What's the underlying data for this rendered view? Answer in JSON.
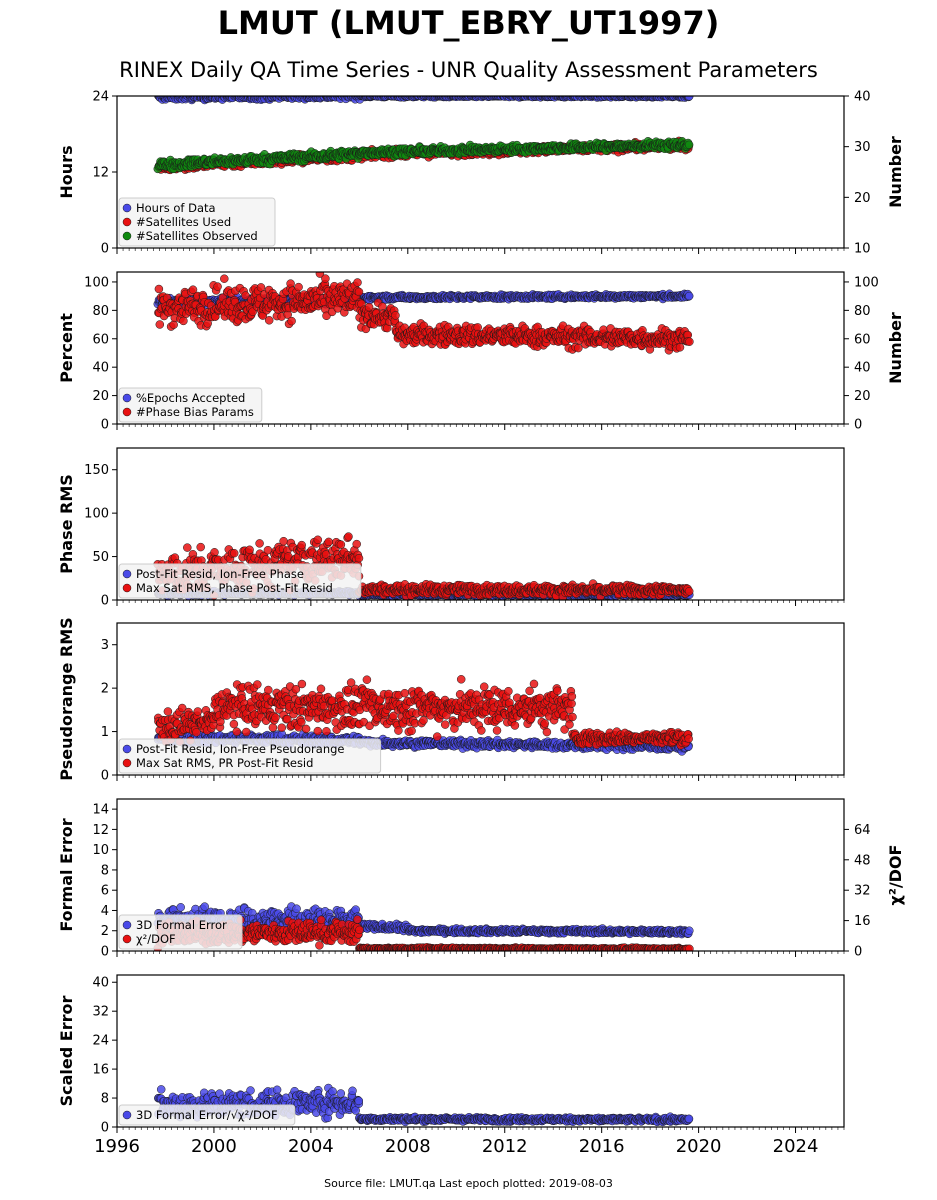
{
  "header": {
    "title": "LMUT (LMUT_EBRY_UT1997)",
    "subtitle": "RINEX Daily QA Time Series - UNR Quality Assessment Parameters"
  },
  "footer": {
    "text": "Source file: LMUT.qa Last epoch plotted: 2019-08-03"
  },
  "colors": {
    "blue": "#4a4ae8",
    "red": "#e81010",
    "green": "#0f8a0f",
    "edge": "#1a1a1a",
    "legend_bg": "#f3f3f3"
  },
  "chart_data": [
    {
      "type": "scatter",
      "ylabel": "Hours",
      "y2label": "Number",
      "ylim": [
        0,
        24
      ],
      "yticks": [
        0,
        12,
        24
      ],
      "y2lim": [
        10,
        40
      ],
      "y2ticks": [
        10,
        20,
        30,
        40
      ],
      "legend": [
        "Hours of Data",
        "#Satellites Used",
        "#Satellites Observed"
      ],
      "series": [
        {
          "name": "Hours of Data",
          "color": "blue",
          "axis": "left",
          "segments": [
            {
              "x": [
                1997.7,
                2006.0
              ],
              "y": [
                23.8,
                24.0
              ],
              "noise": 0.3
            },
            {
              "x": [
                2006.0,
                2019.6
              ],
              "y": [
                24.0,
                24.0
              ],
              "noise": 0.15
            }
          ]
        },
        {
          "name": "#Satellites Used",
          "color": "red",
          "axis": "right",
          "segments": [
            {
              "x": [
                1997.7,
                2006.0
              ],
              "y": [
                26.0,
                28.2
              ],
              "noise": 0.6
            },
            {
              "x": [
                2006.0,
                2019.6
              ],
              "y": [
                28.4,
                30.2
              ],
              "noise": 0.5
            }
          ]
        },
        {
          "name": "#Satellites Observed",
          "color": "green",
          "axis": "right",
          "segments": [
            {
              "x": [
                1997.7,
                2006.0
              ],
              "y": [
                26.4,
                28.6
              ],
              "noise": 0.6
            },
            {
              "x": [
                2006.0,
                2019.6
              ],
              "y": [
                28.8,
                30.4
              ],
              "noise": 0.5
            }
          ]
        }
      ]
    },
    {
      "type": "scatter",
      "ylabel": "Percent",
      "y2label": "Number",
      "ylim": [
        0,
        107
      ],
      "yticks": [
        0,
        20,
        40,
        60,
        80,
        100
      ],
      "y2lim": [
        0,
        107
      ],
      "y2ticks": [
        0,
        20,
        40,
        60,
        80,
        100
      ],
      "legend": [
        "%Epochs Accepted",
        "#Phase Bias Params"
      ],
      "series": [
        {
          "name": "%Epochs Accepted",
          "color": "blue",
          "axis": "left",
          "segments": [
            {
              "x": [
                1997.7,
                2006.0
              ],
              "y": [
                86,
                87
              ],
              "noise": 1.5
            },
            {
              "x": [
                2006.0,
                2019.6
              ],
              "y": [
                89,
                90
              ],
              "noise": 1.0
            }
          ]
        },
        {
          "name": "#Phase Bias Params",
          "color": "red",
          "axis": "right",
          "segments": [
            {
              "x": [
                1997.7,
                2006.0
              ],
              "y": [
                82,
                88
              ],
              "noise": 9
            },
            {
              "x": [
                2006.0,
                2007.5
              ],
              "y": [
                78,
                75
              ],
              "noise": 6
            },
            {
              "x": [
                2007.5,
                2019.6
              ],
              "y": [
                63,
                60
              ],
              "noise": 5
            }
          ]
        }
      ]
    },
    {
      "type": "scatter",
      "ylabel": "Phase RMS",
      "ylim": [
        0,
        175
      ],
      "yticks": [
        0,
        50,
        100,
        150
      ],
      "legend": [
        "Post-Fit Resid, Ion-Free Phase",
        "Max Sat RMS, Phase Post-Fit Resid"
      ],
      "series": [
        {
          "name": "Post-Fit Resid, Ion-Free Phase",
          "color": "blue",
          "axis": "left",
          "segments": [
            {
              "x": [
                1997.7,
                2006.0
              ],
              "y": [
                7,
                8
              ],
              "noise": 1.5
            },
            {
              "x": [
                2006.0,
                2019.6
              ],
              "y": [
                6,
                6
              ],
              "noise": 1.0
            }
          ]
        },
        {
          "name": "Max Sat RMS, Phase Post-Fit Resid",
          "color": "red",
          "axis": "left",
          "segments": [
            {
              "x": [
                1997.7,
                2006.0
              ],
              "y": [
                28,
                50
              ],
              "noise": 18
            },
            {
              "x": [
                2006.0,
                2019.6
              ],
              "y": [
                12,
                11
              ],
              "noise": 4
            }
          ]
        }
      ]
    },
    {
      "type": "scatter",
      "ylabel": "Pseudorange RMS",
      "ylim": [
        0,
        3.5
      ],
      "yticks": [
        0,
        1,
        2,
        3
      ],
      "legend": [
        "Post-Fit Resid, Ion-Free Pseudorange",
        "Max Sat RMS, PR Post-Fit Resid"
      ],
      "series": [
        {
          "name": "Post-Fit Resid, Ion-Free Pseudorange",
          "color": "blue",
          "axis": "left",
          "segments": [
            {
              "x": [
                1997.7,
                2006.0
              ],
              "y": [
                0.85,
                0.8
              ],
              "noise": 0.08
            },
            {
              "x": [
                2006.0,
                2019.6
              ],
              "y": [
                0.75,
                0.65
              ],
              "noise": 0.06
            }
          ]
        },
        {
          "name": "Max Sat RMS, PR Post-Fit Resid",
          "color": "red",
          "axis": "left",
          "segments": [
            {
              "x": [
                1997.7,
                2000.0
              ],
              "y": [
                1.1,
                1.2
              ],
              "noise": 0.25
            },
            {
              "x": [
                2000.0,
                2014.8
              ],
              "y": [
                1.55,
                1.55
              ],
              "noise": 0.35
            },
            {
              "x": [
                2014.8,
                2019.6
              ],
              "y": [
                0.85,
                0.85
              ],
              "noise": 0.1
            }
          ]
        }
      ]
    },
    {
      "type": "scatter",
      "ylabel": "Formal Error",
      "y2label": "χ²/DOF",
      "ylim": [
        0,
        15
      ],
      "yticks": [
        0,
        2,
        4,
        6,
        8,
        10,
        12,
        14
      ],
      "y2lim": [
        0,
        80
      ],
      "y2ticks": [
        0,
        16,
        32,
        48,
        64
      ],
      "legend": [
        "3D Formal Error",
        "χ²/DOF"
      ],
      "series": [
        {
          "name": "3D Formal Error",
          "color": "blue",
          "axis": "left",
          "segments": [
            {
              "x": [
                1997.7,
                2006.0
              ],
              "y": [
                3.2,
                3.0
              ],
              "noise": 0.8
            },
            {
              "x": [
                2006.0,
                2008.0
              ],
              "y": [
                2.4,
                2.3
              ],
              "noise": 0.2
            },
            {
              "x": [
                2008.0,
                2019.6
              ],
              "y": [
                2.0,
                1.9
              ],
              "noise": 0.15
            }
          ]
        },
        {
          "name": "χ²/DOF",
          "color": "red",
          "axis": "right",
          "segments": [
            {
              "x": [
                1997.7,
                2006.0
              ],
              "y": [
                9,
                10
              ],
              "noise": 4
            },
            {
              "x": [
                2006.0,
                2019.6
              ],
              "y": [
                1.2,
                1.0
              ],
              "noise": 0.4
            }
          ]
        }
      ]
    },
    {
      "type": "scatter",
      "ylabel": "Scaled Error",
      "ylim": [
        0,
        42
      ],
      "yticks": [
        0,
        8,
        16,
        24,
        32,
        40
      ],
      "xlim": [
        1996,
        2026
      ],
      "xticks": [
        1996,
        2000,
        2004,
        2008,
        2012,
        2016,
        2020,
        2024
      ],
      "legend": [
        "3D Formal Error/√χ²/DOF"
      ],
      "series": [
        {
          "name": "3D Formal Error/√χ²/DOF",
          "color": "blue",
          "axis": "left",
          "segments": [
            {
              "x": [
                1997.7,
                2006.0
              ],
              "y": [
                6,
                7
              ],
              "noise": 2.5
            },
            {
              "x": [
                2006.0,
                2019.6
              ],
              "y": [
                2.2,
                2.0
              ],
              "noise": 0.4
            }
          ]
        }
      ]
    }
  ]
}
